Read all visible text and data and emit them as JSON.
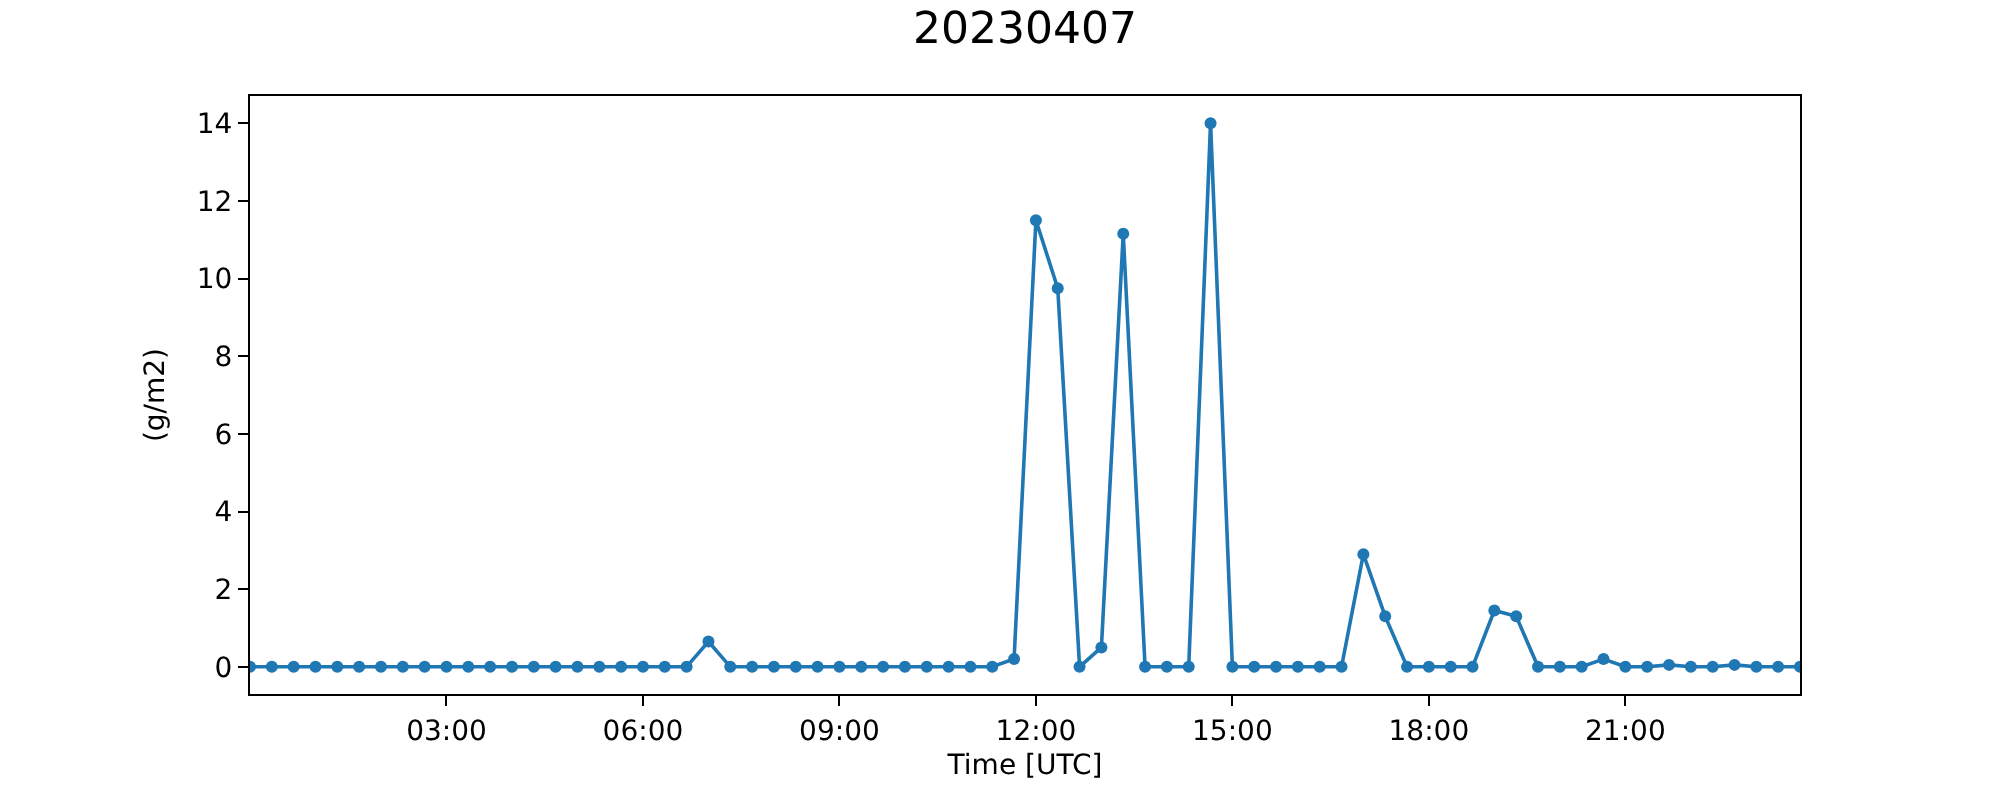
{
  "chart_data": {
    "type": "line",
    "title": "20230407",
    "xlabel": "Time [UTC]",
    "ylabel": "(g/m2)",
    "x": [
      0,
      0.3333,
      0.6667,
      1,
      1.3333,
      1.6667,
      2,
      2.3333,
      2.6667,
      3,
      3.3333,
      3.6667,
      4,
      4.3333,
      4.6667,
      5,
      5.3333,
      5.6667,
      6,
      6.3333,
      6.6667,
      7,
      7.3333,
      7.6667,
      8,
      8.3333,
      8.6667,
      9,
      9.3333,
      9.6667,
      10,
      10.3333,
      10.6667,
      11,
      11.3333,
      11.6667,
      12,
      12.3333,
      12.6667,
      13,
      13.3333,
      13.6667,
      14,
      14.3333,
      14.6667,
      15,
      15.3333,
      15.6667,
      16,
      16.3333,
      16.6667,
      17,
      17.3333,
      17.6667,
      18,
      18.3333,
      18.6667,
      19,
      19.3333,
      19.6667,
      20,
      20.3333,
      20.6667,
      21,
      21.3333,
      21.6667,
      22,
      22.3333,
      22.6667,
      23,
      23.3333,
      23.6667
    ],
    "series": [
      {
        "color": "#1f77b4",
        "values": [
          0,
          0,
          0,
          0,
          0,
          0,
          0,
          0,
          0,
          0,
          0,
          0,
          0,
          0,
          0,
          0,
          0,
          0,
          0,
          0,
          0,
          0.65,
          0,
          0,
          0,
          0,
          0,
          0,
          0,
          0,
          0,
          0,
          0,
          0,
          0,
          0.2,
          11.5,
          9.75,
          0,
          0.5,
          11.15,
          0,
          0,
          0,
          14.0,
          0,
          0,
          0,
          0,
          0,
          0,
          2.9,
          1.3,
          0,
          0,
          0,
          0,
          1.45,
          1.3,
          0,
          0,
          0,
          0.2,
          0,
          0,
          0.05,
          0,
          0,
          0.05,
          0,
          0,
          0
        ]
      }
    ],
    "xlim": [
      0,
      23.6667
    ],
    "ylim": [
      -0.7,
      14.7
    ],
    "xticks": [
      {
        "value": 3,
        "label": "03:00"
      },
      {
        "value": 6,
        "label": "06:00"
      },
      {
        "value": 9,
        "label": "09:00"
      },
      {
        "value": 12,
        "label": "12:00"
      },
      {
        "value": 15,
        "label": "15:00"
      },
      {
        "value": 18,
        "label": "18:00"
      },
      {
        "value": 21,
        "label": "21:00"
      }
    ],
    "yticks": [
      0,
      2,
      4,
      6,
      8,
      10,
      12,
      14
    ],
    "grid": false,
    "marker": "circle",
    "line_style": "solid"
  }
}
